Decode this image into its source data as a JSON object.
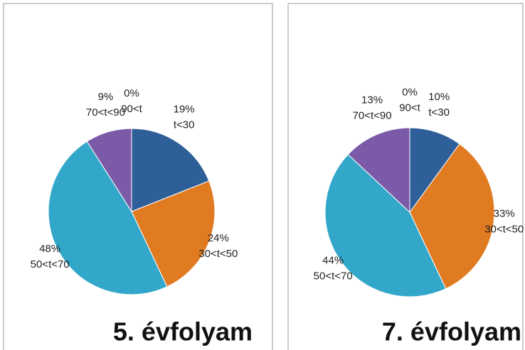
{
  "chart_data": [
    {
      "type": "pie",
      "title": "5. évfolyam",
      "categories": [
        "t<30",
        "30<t<50",
        "50<t<70",
        "70<t<90",
        "90<t"
      ],
      "values": [
        19,
        24,
        48,
        9,
        0
      ],
      "value_labels": [
        "19%",
        "24%",
        "48%",
        "9%",
        "0%"
      ],
      "colors": [
        "#2f5f98",
        "#e07b22",
        "#33a7c9",
        "#7b5aa7",
        "#9bbb59"
      ]
    },
    {
      "type": "pie",
      "title": "7. évfolyam",
      "categories": [
        "t<30",
        "30<t<50",
        "50<t<70",
        "70<t<90",
        "90<t"
      ],
      "values": [
        10,
        33,
        44,
        13,
        0
      ],
      "value_labels": [
        "10%",
        "33%",
        "44%",
        "13%",
        "0%"
      ],
      "colors": [
        "#2f5f98",
        "#e07b22",
        "#33a7c9",
        "#7b5aa7",
        "#9bbb59"
      ]
    }
  ]
}
